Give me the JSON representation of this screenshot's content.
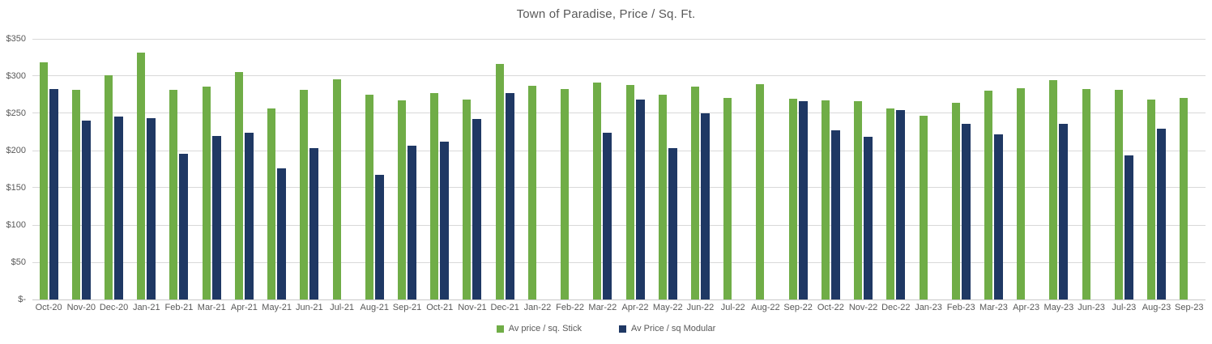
{
  "title": "Town of Paradise, Price / Sq. Ft.",
  "colors": {
    "stick": "#70AD47",
    "modular": "#1F3864",
    "grid": "#D9D9D9",
    "axis_text": "#595959",
    "title_text": "#595959"
  },
  "chart_data": {
    "type": "bar",
    "title": "Town of Paradise, Price / Sq. Ft.",
    "xlabel": "",
    "ylabel": "",
    "grid": true,
    "legend_position": "bottom",
    "y_axis": {
      "min": 0,
      "max": 350,
      "step": 50,
      "tick_labels": [
        "$350",
        "$300",
        "$250",
        "$200",
        "$150",
        "$100",
        "$50",
        "$-"
      ]
    },
    "categories": [
      "Oct-20",
      "Nov-20",
      "Dec-20",
      "Jan-21",
      "Feb-21",
      "Mar-21",
      "Apr-21",
      "May-21",
      "Jun-21",
      "Jul-21",
      "Aug-21",
      "Sep-21",
      "Oct-21",
      "Nov-21",
      "Dec-21",
      "Jan-22",
      "Feb-22",
      "Mar-22",
      "Apr-22",
      "May-22",
      "Jun-22",
      "Jul-22",
      "Aug-22",
      "Sep-22",
      "Oct-22",
      "Nov-22",
      "Dec-22",
      "Jan-23",
      "Feb-23",
      "Mar-23",
      "Apr-23",
      "May-23",
      "Jun-23",
      "Jul-23",
      "Aug-23",
      "Sep-23"
    ],
    "series": [
      {
        "name": "Av price / sq. Stick",
        "color": "#70AD47",
        "values": [
          318,
          281,
          301,
          331,
          281,
          286,
          305,
          256,
          282,
          296,
          275,
          267,
          277,
          268,
          316,
          287,
          283,
          291,
          288,
          275,
          286,
          271,
          289,
          270,
          267,
          266,
          257,
          247,
          264,
          280,
          284,
          295,
          283,
          282,
          268,
          271
        ]
      },
      {
        "name": "Av Price / sq Modular",
        "color": "#1F3864",
        "values": [
          283,
          240,
          246,
          243,
          196,
          220,
          224,
          176,
          203,
          null,
          167,
          206,
          212,
          242,
          277,
          null,
          null,
          224,
          269,
          203,
          250,
          null,
          null,
          266,
          227,
          219,
          254,
          null,
          236,
          222,
          null,
          236,
          null,
          194,
          229,
          null
        ]
      }
    ]
  }
}
